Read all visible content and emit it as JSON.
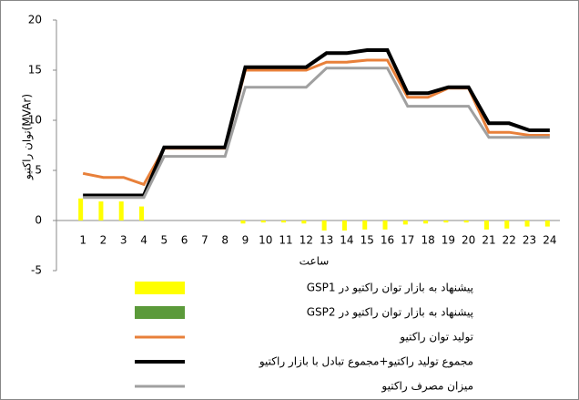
{
  "chart_data": {
    "type": "combo",
    "y_label": "توان راکتیو(MVAr)",
    "x_label": "ساعت",
    "categories": [
      "1",
      "2",
      "3",
      "4",
      "5",
      "6",
      "7",
      "8",
      "9",
      "10",
      "11",
      "12",
      "13",
      "14",
      "15",
      "16",
      "17",
      "18",
      "19",
      "20",
      "21",
      "22",
      "23",
      "24"
    ],
    "ylim": [
      -5,
      20
    ],
    "yticks": [
      -5,
      0,
      5,
      10,
      15,
      20
    ],
    "grid": false,
    "legend": "bottom",
    "series": [
      {
        "name": "پیشنهاد به بازار توان راکتیو در GSP1",
        "type": "bar",
        "color": "#ffff00",
        "values": [
          2.2,
          1.9,
          1.9,
          1.4,
          0,
          0,
          0,
          0,
          -0.3,
          -0.2,
          -0.2,
          -0.3,
          -1,
          -1,
          -0.9,
          -0.9,
          -0.4,
          -0.3,
          -0.2,
          -0.2,
          -0.9,
          -0.8,
          -0.6,
          -0.6
        ]
      },
      {
        "name": "پیشنهاد به بازار توان راکتیو در GSP2",
        "type": "bar",
        "color": "#5b9a3a",
        "values": [
          0,
          0,
          0,
          0,
          0,
          0,
          0,
          0,
          0,
          0,
          0,
          0,
          0,
          0,
          0,
          0,
          0,
          0,
          0,
          0,
          0,
          0,
          0,
          0
        ]
      },
      {
        "name": "تولید توان راکتیو",
        "type": "line",
        "color": "#e8803a",
        "values": [
          4.7,
          4.3,
          4.3,
          3.6,
          7.2,
          7.2,
          7.2,
          7.2,
          15,
          15,
          15,
          15,
          15.8,
          15.8,
          16,
          16,
          12.3,
          12.3,
          13.2,
          13.2,
          8.8,
          8.8,
          8.5,
          8.5
        ]
      },
      {
        "name": "مجموع تولید راکتیو+مجموع تبادل با بازار راکتیو",
        "type": "line",
        "color": "#000000",
        "values": [
          2.5,
          2.5,
          2.5,
          2.5,
          7.3,
          7.3,
          7.3,
          7.3,
          15.3,
          15.3,
          15.3,
          15.3,
          16.7,
          16.7,
          17,
          17,
          12.7,
          12.7,
          13.3,
          13.3,
          9.7,
          9.7,
          9,
          9
        ]
      },
      {
        "name": "میزان مصرف راکتیو",
        "type": "line",
        "color": "#a0a0a0",
        "values": [
          2.3,
          2.3,
          2.3,
          2.3,
          6.4,
          6.4,
          6.4,
          6.4,
          13.3,
          13.3,
          13.3,
          13.3,
          15.2,
          15.2,
          15.2,
          15.2,
          11.4,
          11.4,
          11.4,
          11.4,
          8.3,
          8.3,
          8.3,
          8.3
        ]
      }
    ]
  }
}
